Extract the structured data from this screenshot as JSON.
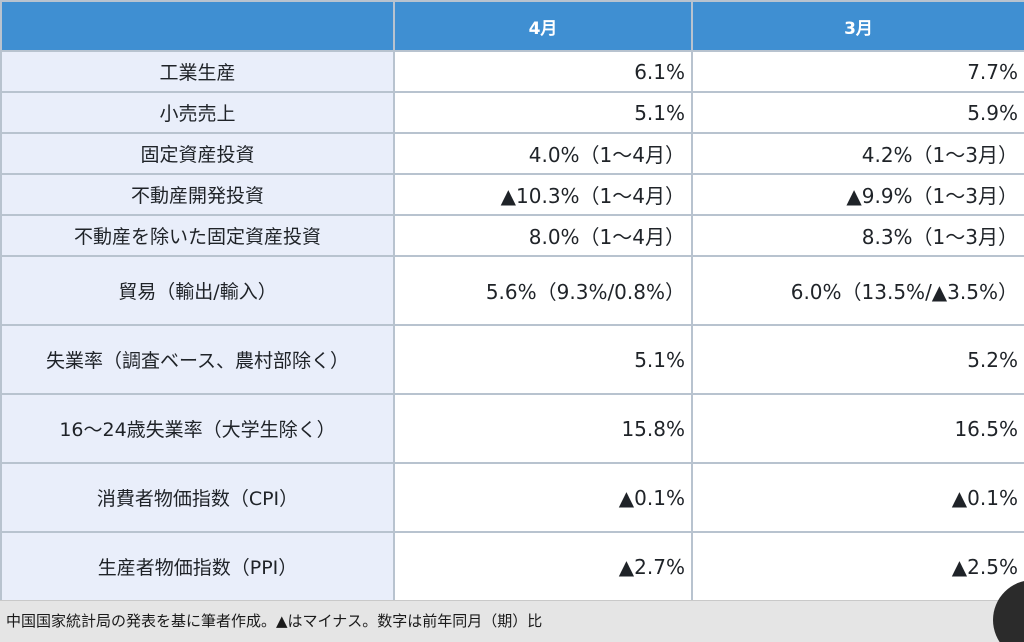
{
  "table": {
    "header": [
      "",
      "4月",
      "3月"
    ],
    "rows": [
      {
        "label": "工業生産",
        "apr": "6.1%",
        "mar": "7.7%"
      },
      {
        "label": "小売売上",
        "apr": "5.1%",
        "mar": "5.9%"
      },
      {
        "label": "固定資産投資",
        "apr": "4.0%（1〜4月）",
        "mar": "4.2%（1〜3月）"
      },
      {
        "label": "不動産開発投資",
        "apr": "▲10.3%（1〜4月）",
        "mar": "▲9.9%（1〜3月）"
      },
      {
        "label": "不動産を除いた固定資産投資",
        "apr": "8.0%（1〜4月）",
        "mar": "8.3%（1〜3月）"
      },
      {
        "label": "貿易（輸出/輸入）",
        "apr": "5.6%（9.3%/0.8%）",
        "mar": "6.0%（13.5%/▲3.5%）"
      },
      {
        "label": "失業率（調査ベース、農村部除く）",
        "apr": "5.1%",
        "mar": "5.2%"
      },
      {
        "label": "16〜24歳失業率（大学生除く）",
        "apr": "15.8%",
        "mar": "16.5%"
      },
      {
        "label": "消費者物価指数（CPI）",
        "apr": "▲0.1%",
        "mar": "▲0.1%"
      },
      {
        "label": "生産者物価指数（PPI）",
        "apr": "▲2.7%",
        "mar": "▲2.5%"
      }
    ]
  },
  "footer": {
    "note": "中国国家統計局の発表を基に筆者作成。▲はマイナス。数字は前年同月（期）比"
  }
}
